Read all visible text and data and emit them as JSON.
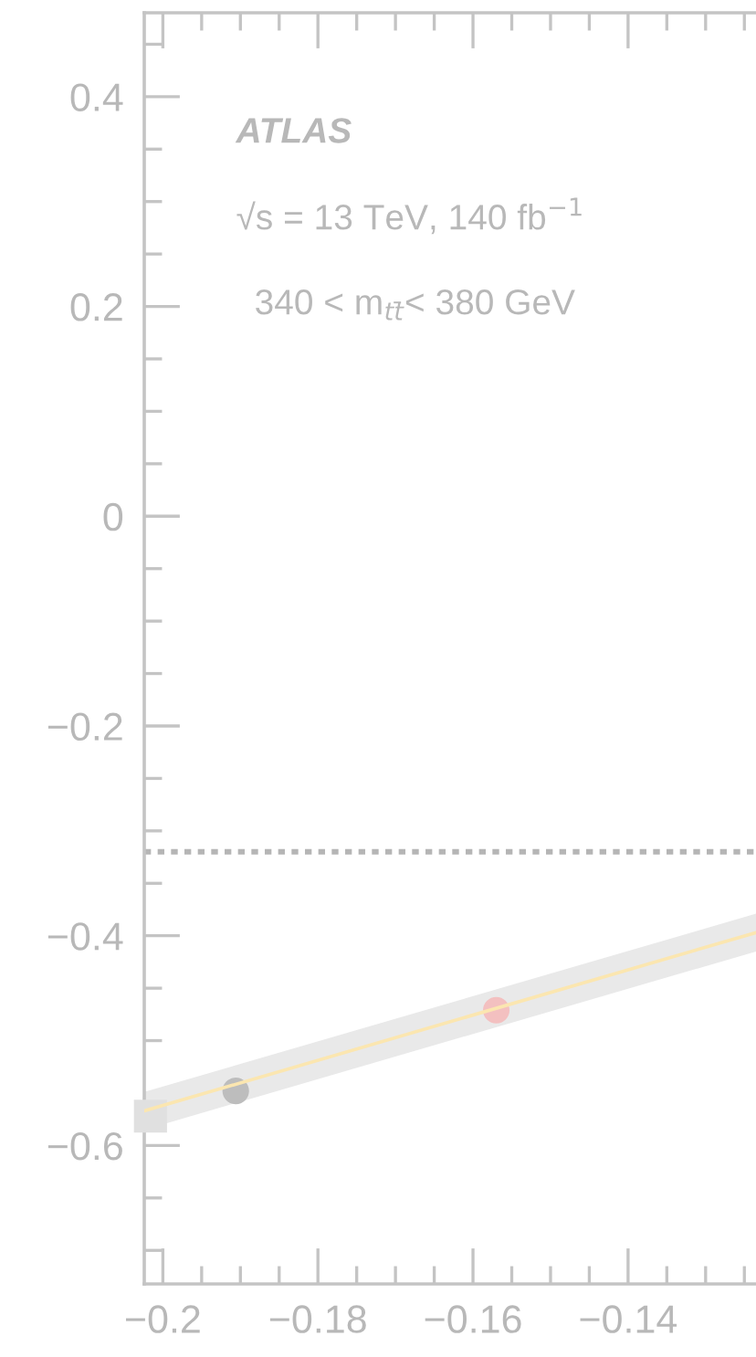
{
  "chart_data": {
    "type": "line",
    "annotations": [
      "ATLAS",
      "√s = 13 TeV, 140 fb$^{−1}$",
      "340 < m$_{tt̄}$< 380 GeV"
    ],
    "series": [
      {
        "color": "#fbe6b0",
        "x": [
          -0.2024,
          -0.1235
        ],
        "values": [
          -0.567,
          -0.397
        ],
        "lower": [
          -0.585,
          -0.415
        ],
        "upper": [
          -0.549,
          -0.379
        ]
      },
      {
        "type": "scatter",
        "color": "#e0e0e0",
        "marker": "square",
        "x": [
          -0.2016
        ],
        "values": [
          -0.572
        ]
      },
      {
        "type": "scatter",
        "color": "#bdbdbd",
        "marker": "circle",
        "x": [
          -0.1906
        ],
        "values": [
          -0.548
        ]
      },
      {
        "type": "scatter",
        "color": "#f3c0c0",
        "marker": "circle",
        "x": [
          -0.157
        ],
        "values": [
          -0.471
        ]
      }
    ],
    "ref_lines": [
      {
        "axis": "y",
        "value": -0.32,
        "color": "#b5b5b5",
        "line_style": "dotted"
      }
    ],
    "xlim": [
      -0.2024,
      -0.1235
    ],
    "xticks": [
      {
        "value": -0.2,
        "label": "−0.2"
      },
      {
        "value": -0.195,
        "label": null
      },
      {
        "value": -0.19,
        "label": null
      },
      {
        "value": -0.185,
        "label": null
      },
      {
        "value": -0.18,
        "label": "−0.18"
      },
      {
        "value": -0.175,
        "label": null
      },
      {
        "value": -0.17,
        "label": null
      },
      {
        "value": -0.165,
        "label": null
      },
      {
        "value": -0.16,
        "label": "−0.16"
      },
      {
        "value": -0.155,
        "label": null
      },
      {
        "value": -0.15,
        "label": null
      },
      {
        "value": -0.145,
        "label": null
      },
      {
        "value": -0.14,
        "label": "−0.14"
      },
      {
        "value": -0.135,
        "label": null
      },
      {
        "value": -0.13,
        "label": null
      },
      {
        "value": -0.125,
        "label": null
      }
    ],
    "ylim": [
      -0.732,
      0.48
    ],
    "yticks": [
      {
        "value": 0.45,
        "label": null
      },
      0.4,
      {
        "value": 0.35,
        "label": null
      },
      {
        "value": 0.3,
        "label": null
      },
      {
        "value": 0.25,
        "label": null
      },
      0.2,
      {
        "value": 0.15,
        "label": null
      },
      {
        "value": 0.1,
        "label": null
      },
      {
        "value": 0.05,
        "label": null
      },
      0,
      {
        "value": -0.05,
        "label": null
      },
      {
        "value": -0.1,
        "label": null
      },
      {
        "value": -0.15,
        "label": null
      },
      {
        "value": -0.2,
        "label": "−0.2"
      },
      {
        "value": -0.25,
        "label": null
      },
      {
        "value": -0.3,
        "label": null
      },
      {
        "value": -0.35,
        "label": null
      },
      {
        "value": -0.4,
        "label": "−0.4"
      },
      {
        "value": -0.45,
        "label": null
      },
      {
        "value": -0.5,
        "label": null
      },
      {
        "value": -0.55,
        "label": null
      },
      {
        "value": -0.6,
        "label": "−0.6"
      },
      {
        "value": -0.65,
        "label": null
      },
      {
        "value": -0.7,
        "label": null
      }
    ],
    "grid": false,
    "legend": false
  }
}
